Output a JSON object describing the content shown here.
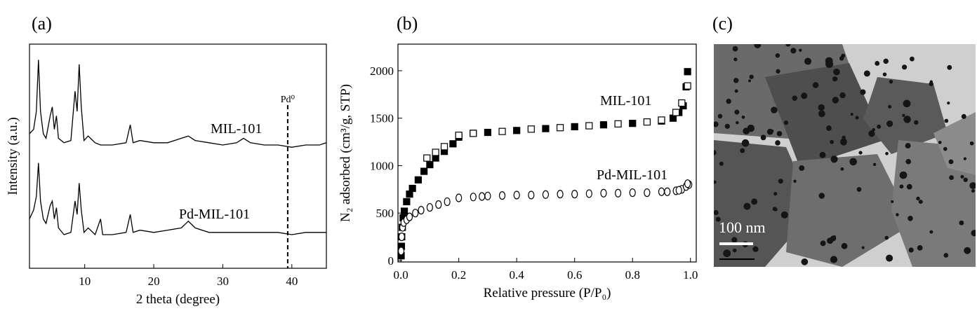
{
  "chart_data": [
    {
      "type": "line",
      "label": "(a)",
      "xlabel": "2 theta (degree)",
      "ylabel": "Intensity (a.u.)",
      "xlim": [
        2,
        45
      ],
      "xticks": [
        10,
        20,
        30,
        40
      ],
      "ylim": [
        0,
        100
      ],
      "x": [
        2.0,
        2.6,
        3.0,
        3.3,
        3.6,
        4.0,
        4.4,
        5.0,
        5.3,
        5.6,
        5.9,
        6.2,
        7.0,
        8.0,
        8.6,
        8.9,
        9.2,
        9.5,
        9.9,
        10.5,
        11.5,
        12.3,
        12.6,
        14,
        16,
        16.6,
        17,
        18,
        20,
        22,
        24,
        25,
        26,
        28,
        30,
        32,
        33,
        34,
        36,
        38,
        40,
        42,
        44,
        45
      ],
      "series": [
        {
          "name": "MIL-101",
          "color": "#000",
          "values": [
            60,
            62,
            70,
            93,
            70,
            60,
            58,
            68,
            72,
            62,
            68,
            58,
            56,
            57,
            79,
            70,
            91,
            72,
            57,
            59,
            56,
            55,
            55,
            55,
            56,
            64,
            56,
            57,
            56,
            56,
            58,
            59,
            57,
            56,
            55,
            56,
            58,
            56,
            55,
            55,
            54,
            55,
            55,
            56
          ]
        },
        {
          "name": "Pd-MIL-101",
          "color": "#000",
          "values": [
            22,
            26,
            32,
            47,
            30,
            22,
            20,
            28,
            30,
            22,
            27,
            18,
            15,
            16,
            30,
            24,
            38,
            26,
            16,
            18,
            15,
            22,
            15,
            15,
            16,
            24,
            16,
            17,
            16,
            17,
            18,
            21,
            18,
            16,
            16,
            16,
            16,
            16,
            16,
            16,
            15,
            16,
            16,
            16
          ]
        }
      ],
      "reference_line": {
        "x": 39.4,
        "label": "Pd⁰"
      }
    },
    {
      "type": "scatter",
      "label": "(b)",
      "xlabel": "Relative pressure (P/P₀)",
      "ylabel": "N₂ adsorbed (cm³/g, STP)",
      "xlim": [
        -0.01,
        1.02
      ],
      "ylim": [
        -15,
        2280
      ],
      "xticks": [
        {
          "value": 0,
          "label": "0.0"
        },
        {
          "value": 0.2,
          "label": "0.2"
        },
        {
          "value": 0.4,
          "label": "0.4"
        },
        {
          "value": 0.6,
          "label": "0.6"
        },
        {
          "value": 0.8,
          "label": "0.8"
        },
        {
          "value": 1,
          "label": "1.0"
        }
      ],
      "yticks": [
        0,
        500,
        1000,
        1500,
        2000
      ],
      "series": [
        {
          "name": "MIL-101",
          "marker": "square",
          "filled": true,
          "color": "#000",
          "x": [
            0.001,
            0.002,
            0.003,
            0.005,
            0.008,
            0.012,
            0.02,
            0.03,
            0.04,
            0.06,
            0.08,
            0.1,
            0.12,
            0.15,
            0.18,
            0.2,
            0.25,
            0.3,
            0.4,
            0.5,
            0.6,
            0.7,
            0.8,
            0.9,
            0.94,
            0.96,
            0.975,
            0.985,
            0.99
          ],
          "values": [
            50,
            150,
            250,
            350,
            450,
            520,
            620,
            700,
            760,
            850,
            940,
            1010,
            1080,
            1150,
            1230,
            1300,
            1340,
            1350,
            1370,
            1390,
            1410,
            1430,
            1445,
            1470,
            1500,
            1560,
            1630,
            1830,
            1990
          ]
        },
        {
          "marker": "square",
          "filled": false,
          "color": "#000",
          "x": [
            0.99,
            0.97,
            0.95,
            0.9,
            0.85,
            0.75,
            0.65,
            0.55,
            0.45,
            0.35,
            0.25,
            0.2,
            0.15,
            0.12,
            0.09
          ],
          "values": [
            1840,
            1660,
            1560,
            1480,
            1460,
            1440,
            1420,
            1400,
            1385,
            1360,
            1340,
            1320,
            1200,
            1140,
            1080
          ]
        },
        {
          "name": "Pd-MIL-101",
          "marker": "circle",
          "filled": false,
          "color": "#000",
          "x": [
            0.001,
            0.003,
            0.006,
            0.01,
            0.02,
            0.03,
            0.05,
            0.07,
            0.1,
            0.13,
            0.16,
            0.2,
            0.25,
            0.3,
            0.4,
            0.5,
            0.6,
            0.7,
            0.8,
            0.9,
            0.95,
            0.97,
            0.985,
            0.995
          ],
          "values": [
            100,
            250,
            350,
            400,
            430,
            460,
            500,
            530,
            560,
            590,
            620,
            660,
            670,
            680,
            690,
            695,
            700,
            710,
            715,
            725,
            735,
            750,
            780,
            800
          ]
        },
        {
          "marker": "circle",
          "filled": false,
          "color": "#000",
          "x": [
            0.99,
            0.96,
            0.92,
            0.85,
            0.75,
            0.65,
            0.55,
            0.45,
            0.35,
            0.28
          ],
          "values": [
            810,
            740,
            725,
            715,
            710,
            705,
            700,
            690,
            685,
            675
          ]
        }
      ]
    }
  ],
  "image_panel": {
    "label": "(c)",
    "scale_bar": "100 nm"
  }
}
